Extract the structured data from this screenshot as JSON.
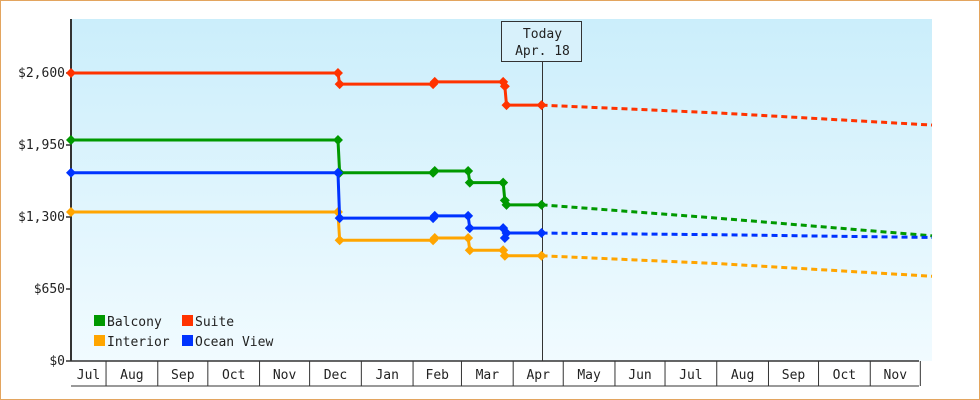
{
  "chart_data": {
    "type": "line",
    "title": "",
    "xlabel": "",
    "ylabel": "",
    "ylim": [
      0,
      3120
    ],
    "xlim": [
      "2023-07-11",
      "2024-12-08"
    ],
    "y_ticks": [
      {
        "value": 0,
        "label": "$0"
      },
      {
        "value": 650,
        "label": "$650"
      },
      {
        "value": 1300,
        "label": "$1,300"
      },
      {
        "value": 1950,
        "label": "$1,950"
      },
      {
        "value": 2600,
        "label": "$2,600"
      }
    ],
    "x_ticks": [
      "Jul",
      "Aug",
      "Sep",
      "Oct",
      "Nov",
      "Dec",
      "Jan",
      "Feb",
      "Mar",
      "Apr",
      "May",
      "Jun",
      "Jul",
      "Aug",
      "Sep",
      "Oct",
      "Nov"
    ],
    "today": {
      "label": "Today",
      "date_label": "Apr. 18",
      "date": "2024-04-18"
    },
    "legend_position": "bottom-left",
    "series": [
      {
        "name": "Balcony",
        "color": "#009900",
        "points": [
          [
            "2023-07-11",
            1995
          ],
          [
            "2023-12-18",
            1995
          ],
          [
            "2023-12-19",
            1700
          ],
          [
            "2024-02-13",
            1700
          ],
          [
            "2024-02-14",
            1715
          ],
          [
            "2024-03-05",
            1715
          ],
          [
            "2024-03-06",
            1610
          ],
          [
            "2024-03-26",
            1610
          ],
          [
            "2024-03-27",
            1450
          ],
          [
            "2024-03-28",
            1410
          ],
          [
            "2024-04-18",
            1410
          ]
        ],
        "forecast": [
          [
            "2024-04-18",
            1410
          ],
          [
            "2024-08-01",
            1290
          ],
          [
            "2024-12-08",
            1130
          ]
        ]
      },
      {
        "name": "Suite",
        "color": "#ff3300",
        "points": [
          [
            "2023-07-11",
            2600
          ],
          [
            "2023-12-18",
            2600
          ],
          [
            "2023-12-19",
            2500
          ],
          [
            "2024-02-13",
            2500
          ],
          [
            "2024-02-14",
            2520
          ],
          [
            "2024-03-26",
            2520
          ],
          [
            "2024-03-27",
            2480
          ],
          [
            "2024-03-28",
            2310
          ],
          [
            "2024-04-18",
            2310
          ]
        ],
        "forecast": [
          [
            "2024-04-18",
            2310
          ],
          [
            "2024-08-01",
            2240
          ],
          [
            "2024-12-08",
            2130
          ]
        ]
      },
      {
        "name": "Interior",
        "color": "#ffa500",
        "points": [
          [
            "2023-07-11",
            1345
          ],
          [
            "2023-12-18",
            1345
          ],
          [
            "2023-12-19",
            1090
          ],
          [
            "2024-02-13",
            1090
          ],
          [
            "2024-02-14",
            1110
          ],
          [
            "2024-03-05",
            1110
          ],
          [
            "2024-03-06",
            1000
          ],
          [
            "2024-03-26",
            1000
          ],
          [
            "2024-03-27",
            950
          ],
          [
            "2024-04-18",
            950
          ]
        ],
        "forecast": [
          [
            "2024-04-18",
            950
          ],
          [
            "2024-08-01",
            880
          ],
          [
            "2024-12-08",
            765
          ]
        ]
      },
      {
        "name": "Ocean View",
        "color": "#0033ff",
        "points": [
          [
            "2023-07-11",
            1700
          ],
          [
            "2023-12-18",
            1700
          ],
          [
            "2023-12-19",
            1290
          ],
          [
            "2024-02-13",
            1290
          ],
          [
            "2024-02-14",
            1310
          ],
          [
            "2024-03-05",
            1310
          ],
          [
            "2024-03-06",
            1200
          ],
          [
            "2024-03-26",
            1200
          ],
          [
            "2024-03-27",
            1110
          ],
          [
            "2024-03-28",
            1155
          ],
          [
            "2024-04-18",
            1155
          ]
        ],
        "forecast": [
          [
            "2024-04-18",
            1155
          ],
          [
            "2024-08-01",
            1140
          ],
          [
            "2024-12-08",
            1115
          ]
        ]
      }
    ]
  }
}
